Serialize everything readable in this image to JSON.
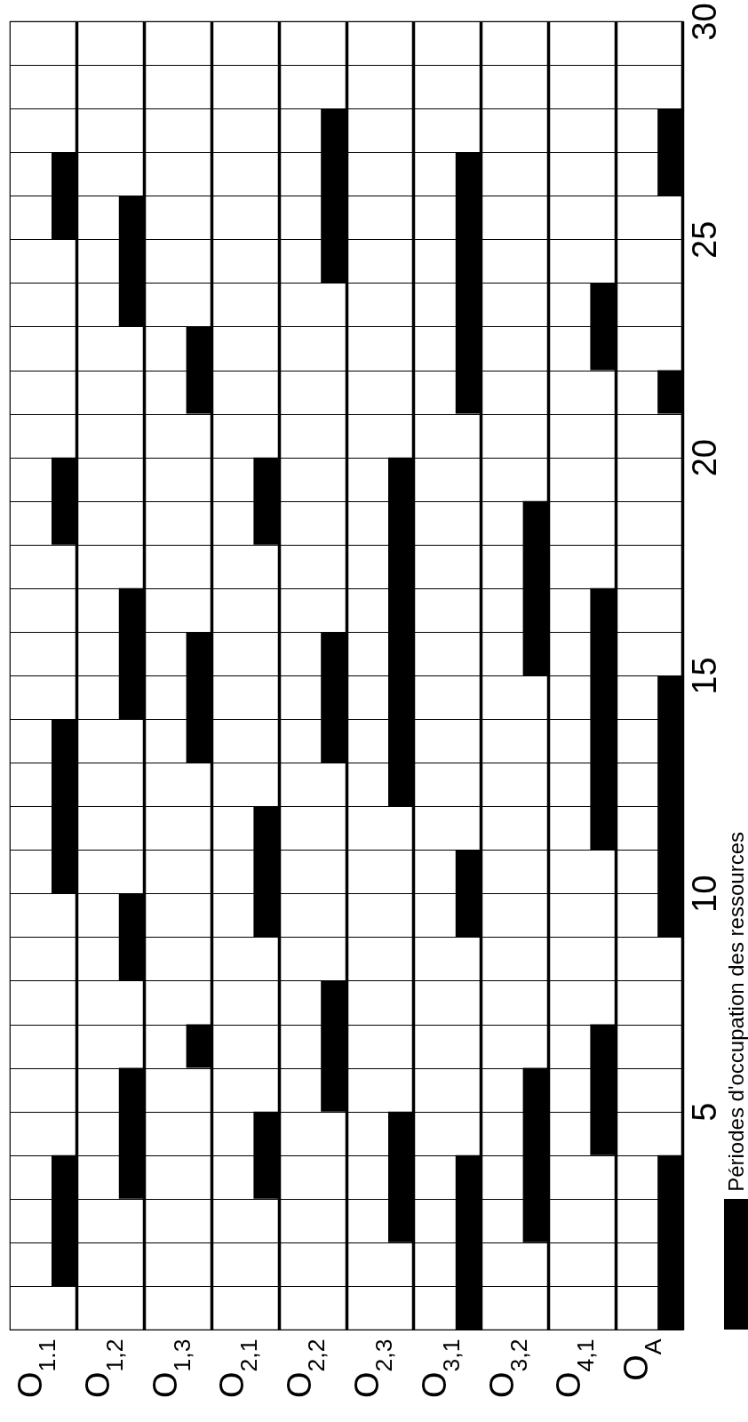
{
  "chart_data": {
    "type": "bar",
    "categories": [
      "O$_{1.1}$",
      "O$_{1,2}$",
      "O$_{1,3}$",
      "O$_{2,1}$",
      "O$_{2,2}$",
      "O$_{2,3}$",
      "O$_{3,1}$",
      "O$_{3,2}$",
      "O$_{4,1}$",
      "O$_{A}$"
    ],
    "series": [
      {
        "name": "Périodes d'occupation des ressources",
        "color": "#000000",
        "base": [
          1,
          3,
          6,
          3,
          5,
          2,
          0,
          2,
          4,
          0
        ],
        "values": [
          3,
          3,
          1,
          2,
          3,
          3,
          4,
          4,
          3,
          4
        ]
      },
      {
        "color": "#000000",
        "base": [
          10,
          8,
          13,
          9,
          13,
          12,
          9,
          15,
          11,
          9
        ],
        "values": [
          4,
          2,
          3,
          3,
          3,
          8,
          2,
          4,
          6,
          6
        ]
      },
      {
        "color": "#000000",
        "base": [
          18,
          14,
          21,
          18,
          24,
          null,
          21,
          null,
          22,
          21
        ],
        "values": [
          2,
          3,
          2,
          2,
          4,
          null,
          6,
          null,
          2,
          1
        ]
      },
      {
        "color": "#000000",
        "base": [
          25,
          23,
          null,
          null,
          null,
          null,
          null,
          null,
          null,
          26
        ],
        "values": [
          2,
          3,
          null,
          null,
          null,
          null,
          null,
          null,
          null,
          2
        ]
      }
    ],
    "ylim": [
      0,
      30
    ],
    "yticks": [
      {
        "value": 1,
        "label": null
      },
      {
        "value": 2,
        "label": null
      },
      {
        "value": 3,
        "label": null
      },
      {
        "value": 4,
        "label": null
      },
      5,
      {
        "value": 6,
        "label": null
      },
      {
        "value": 7,
        "label": null
      },
      {
        "value": 8,
        "label": null
      },
      {
        "value": 9,
        "label": null
      },
      10,
      {
        "value": 11,
        "label": null
      },
      {
        "value": 12,
        "label": null
      },
      {
        "value": 13,
        "label": null
      },
      {
        "value": 14,
        "label": null
      },
      15,
      {
        "value": 16,
        "label": null
      },
      {
        "value": 17,
        "label": null
      },
      {
        "value": 18,
        "label": null
      },
      {
        "value": 19,
        "label": null
      },
      20,
      {
        "value": 21,
        "label": null
      },
      {
        "value": 22,
        "label": null
      },
      {
        "value": 23,
        "label": null
      },
      {
        "value": 24,
        "label": null
      },
      25,
      {
        "value": 26,
        "label": null
      },
      {
        "value": 27,
        "label": null
      },
      {
        "value": 28,
        "label": null
      },
      {
        "value": 29,
        "label": null
      },
      30
    ],
    "grid": true,
    "legend": "bottom right"
  }
}
